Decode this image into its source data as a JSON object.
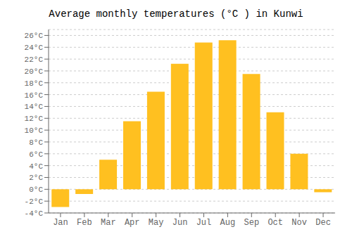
{
  "chart_data": {
    "type": "bar",
    "title": "Average monthly temperatures (°C ) in Kunwi",
    "categories": [
      "Jan",
      "Feb",
      "Mar",
      "Apr",
      "May",
      "Jun",
      "Jul",
      "Aug",
      "Sep",
      "Oct",
      "Nov",
      "Dec"
    ],
    "values": [
      -3.0,
      -0.8,
      5.0,
      11.5,
      16.5,
      21.2,
      24.8,
      25.2,
      19.5,
      13.0,
      6.0,
      -0.5
    ],
    "color": "#FFC020",
    "ylim": [
      -4,
      27
    ],
    "yticks": [
      {
        "value": -4,
        "label": "-4°C"
      },
      {
        "value": -2,
        "label": "-2°C"
      },
      {
        "value": 0,
        "label": "0°C"
      },
      {
        "value": 2,
        "label": "2°C"
      },
      {
        "value": 4,
        "label": "4°C"
      },
      {
        "value": 6,
        "label": "6°C"
      },
      {
        "value": 8,
        "label": "8°C"
      },
      {
        "value": 10,
        "label": "10°C"
      },
      {
        "value": 12,
        "label": "12°C"
      },
      {
        "value": 14,
        "label": "14°C"
      },
      {
        "value": 16,
        "label": "16°C"
      },
      {
        "value": 18,
        "label": "18°C"
      },
      {
        "value": 20,
        "label": "20°C"
      },
      {
        "value": 22,
        "label": "22°C"
      },
      {
        "value": 24,
        "label": "24°C"
      },
      {
        "value": 26,
        "label": "26°C"
      }
    ],
    "grid": true
  }
}
